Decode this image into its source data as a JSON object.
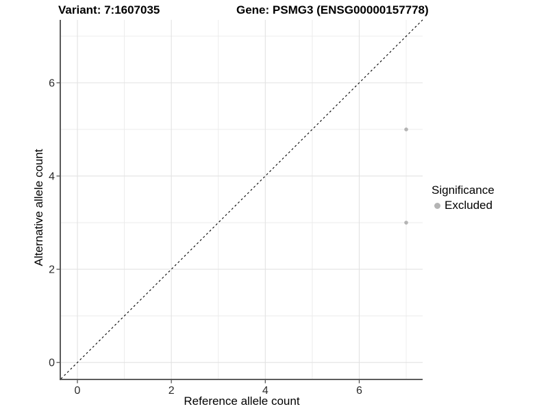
{
  "figure": {
    "title_left": "Variant: 7:1607035",
    "title_right": "Gene: PSMG3 (ENSG00000157778)"
  },
  "legend": {
    "title": "Significance",
    "items": [
      {
        "label": "Excluded",
        "color": "#b4b4b4"
      }
    ]
  },
  "chart_data": {
    "type": "scatter",
    "title": "Variant: 7:1607035   Gene: PSMG3 (ENSG00000157778)",
    "xlabel": "Reference allele count",
    "ylabel": "Alternative allele count",
    "xlim": [
      -0.35,
      7.35
    ],
    "ylim": [
      -0.35,
      7.35
    ],
    "x_ticks": [
      0,
      2,
      4,
      6
    ],
    "y_ticks": [
      0,
      2,
      4,
      6
    ],
    "x_minor_ticks": [
      1,
      3,
      5,
      7
    ],
    "y_minor_ticks": [
      1,
      3,
      5,
      7
    ],
    "grid": true,
    "legend_position": "right",
    "legend_title": "Significance",
    "reference_line": {
      "type": "identity",
      "slope": 1,
      "intercept": 0,
      "style": "dashed",
      "color": "#000000"
    },
    "series": [
      {
        "name": "Excluded",
        "color": "#b4b4b4",
        "points": [
          {
            "x": 7,
            "y": 5
          },
          {
            "x": 7,
            "y": 3
          }
        ]
      }
    ],
    "colors": {
      "axis_line": "#474747",
      "tick_label": "#2b2b2b",
      "grid_major": "#e2e2e2",
      "grid_minor": "#eaeaea",
      "background": "#ffffff"
    }
  }
}
